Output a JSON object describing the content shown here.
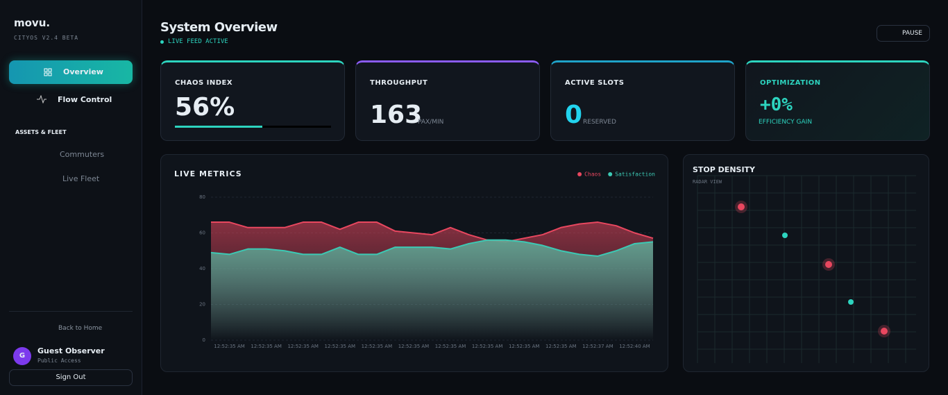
{
  "sidebar": {
    "brand": "movu.",
    "version": "CITYOS V2.4 BETA",
    "nav": [
      "Overview",
      "Flow Control"
    ],
    "section": "ASSETS & FLEET",
    "items": [
      "Commuters",
      "Live Fleet"
    ],
    "home": "Back to Home",
    "user": {
      "initial": "G",
      "name": "Guest Observer",
      "role": "Public Access"
    },
    "signout": "Sign Out"
  },
  "header": {
    "title": "System Overview",
    "status": "LIVE FEED ACTIVE",
    "button": "PAUSE"
  },
  "cards": [
    {
      "title": "CHAOS INDEX",
      "value": 56,
      "value_label": "56%"
    },
    {
      "title": "THROUGHPUT",
      "value": "163",
      "unit": "PAX/MIN"
    },
    {
      "title": "ACTIVE SLOTS",
      "value": "0",
      "unit": "RESERVED"
    },
    {
      "title": "OPTIMIZATION",
      "value": "+0%",
      "unit": "EFFICIENCY GAIN"
    }
  ],
  "chart_data": {
    "type": "area",
    "title": "LIVE METRICS",
    "categories": [
      null,
      "12:52:35 AM",
      null,
      "12:52:35 AM",
      null,
      "12:52:35 AM",
      null,
      "12:52:35 AM",
      null,
      "12:52:35 AM",
      null,
      "12:52:35 AM",
      null,
      "12:52:35 AM",
      null,
      "12:52:35 AM",
      null,
      "12:52:35 AM",
      null,
      "12:52:35 AM",
      null,
      "12:52:37 AM",
      null,
      "12:52:40 AM",
      null
    ],
    "series": [
      {
        "name": "Chaos",
        "color": "#e8475f",
        "values": [
          66,
          66,
          63,
          63,
          63,
          66,
          66,
          62,
          66,
          66,
          61,
          60,
          59,
          63,
          59,
          56,
          55,
          57,
          59,
          63,
          65,
          66,
          64,
          60,
          57
        ]
      },
      {
        "name": "Satisfaction",
        "color": "#3cc9b4",
        "values": [
          49,
          48,
          51,
          51,
          50,
          48,
          48,
          52,
          48,
          48,
          52,
          52,
          52,
          51,
          54,
          56,
          56,
          55,
          53,
          50,
          48,
          47,
          50,
          54,
          55
        ]
      }
    ],
    "ylim": [
      0,
      80
    ],
    "yticks": [
      0,
      20,
      40,
      60,
      80
    ],
    "grid": true,
    "legend": "top-right"
  },
  "radar": {
    "title": "STOP DENSITY",
    "subtitle": "RADAR VIEW"
  }
}
